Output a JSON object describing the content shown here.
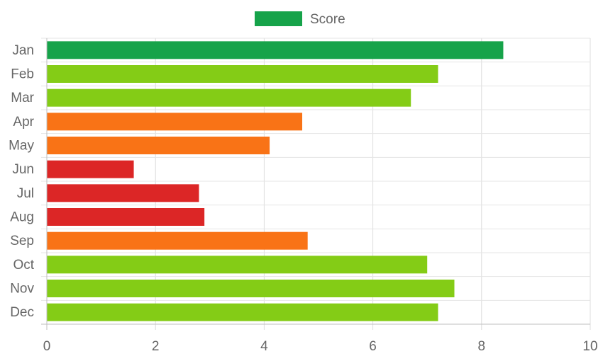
{
  "chart_data": {
    "type": "bar",
    "orientation": "horizontal",
    "categories": [
      "Jan",
      "Feb",
      "Mar",
      "Apr",
      "May",
      "Jun",
      "Jul",
      "Aug",
      "Sep",
      "Oct",
      "Nov",
      "Dec"
    ],
    "series": [
      {
        "name": "Score",
        "values": [
          8.4,
          7.2,
          6.7,
          4.7,
          4.1,
          1.6,
          2.8,
          2.9,
          4.8,
          7.0,
          7.5,
          7.2
        ]
      }
    ],
    "bar_colors": [
      "#16a34a",
      "#84cc16",
      "#84cc16",
      "#f97316",
      "#f97316",
      "#dc2626",
      "#dc2626",
      "#dc2626",
      "#f97316",
      "#84cc16",
      "#84cc16",
      "#84cc16"
    ],
    "xlim": [
      0,
      10
    ],
    "x_ticks": [
      "0",
      "2",
      "4",
      "6",
      "8",
      "10"
    ],
    "grid": true,
    "legend": {
      "position": "top",
      "label": "Score",
      "swatch_color": "#16a34a"
    }
  }
}
